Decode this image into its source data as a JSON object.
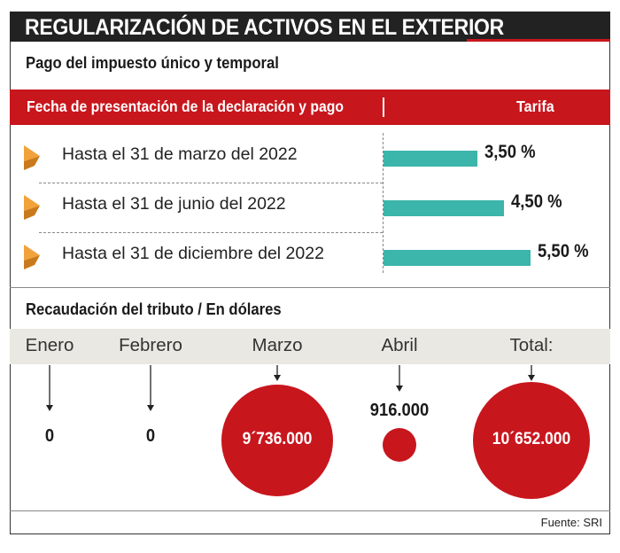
{
  "header": {
    "title": "REGULARIZACIÓN DE ACTIVOS EN EL EXTERIOR",
    "subtitle": "Pago del impuesto único y temporal"
  },
  "colors": {
    "accent_red": "#c8161d",
    "bar_teal": "#3cb5ab",
    "dark": "#222222",
    "band_gray": "#e9e8e2",
    "arrow_orange": "#f2a23a"
  },
  "table": {
    "col_date": "Fecha de presentación de la declaración y pago",
    "col_rate": "Tarifa"
  },
  "chart_data": [
    {
      "type": "bar",
      "orientation": "horizontal",
      "categories": [
        "Hasta el 31 de marzo del 2022",
        "Hasta el 31 de junio del 2022",
        "Hasta el 31 de diciembre del 2022"
      ],
      "values": [
        3.5,
        4.5,
        5.5
      ],
      "labels": [
        "3,50 %",
        "4,50 %",
        "5,50 %"
      ],
      "unit": "%",
      "icon": "orange-triangle-arrow-icon"
    },
    {
      "type": "bubble",
      "title": "Recaudación del tributo / En dólares",
      "categories": [
        "Enero",
        "Febrero",
        "Marzo",
        "Abril",
        "Total:"
      ],
      "values": [
        0,
        0,
        9736000,
        916000,
        10652000
      ],
      "labels": [
        "0",
        "0",
        "9´736.000",
        "916.000",
        "10´652.000"
      ]
    }
  ],
  "footer": {
    "source": "Fuente: SRI"
  }
}
